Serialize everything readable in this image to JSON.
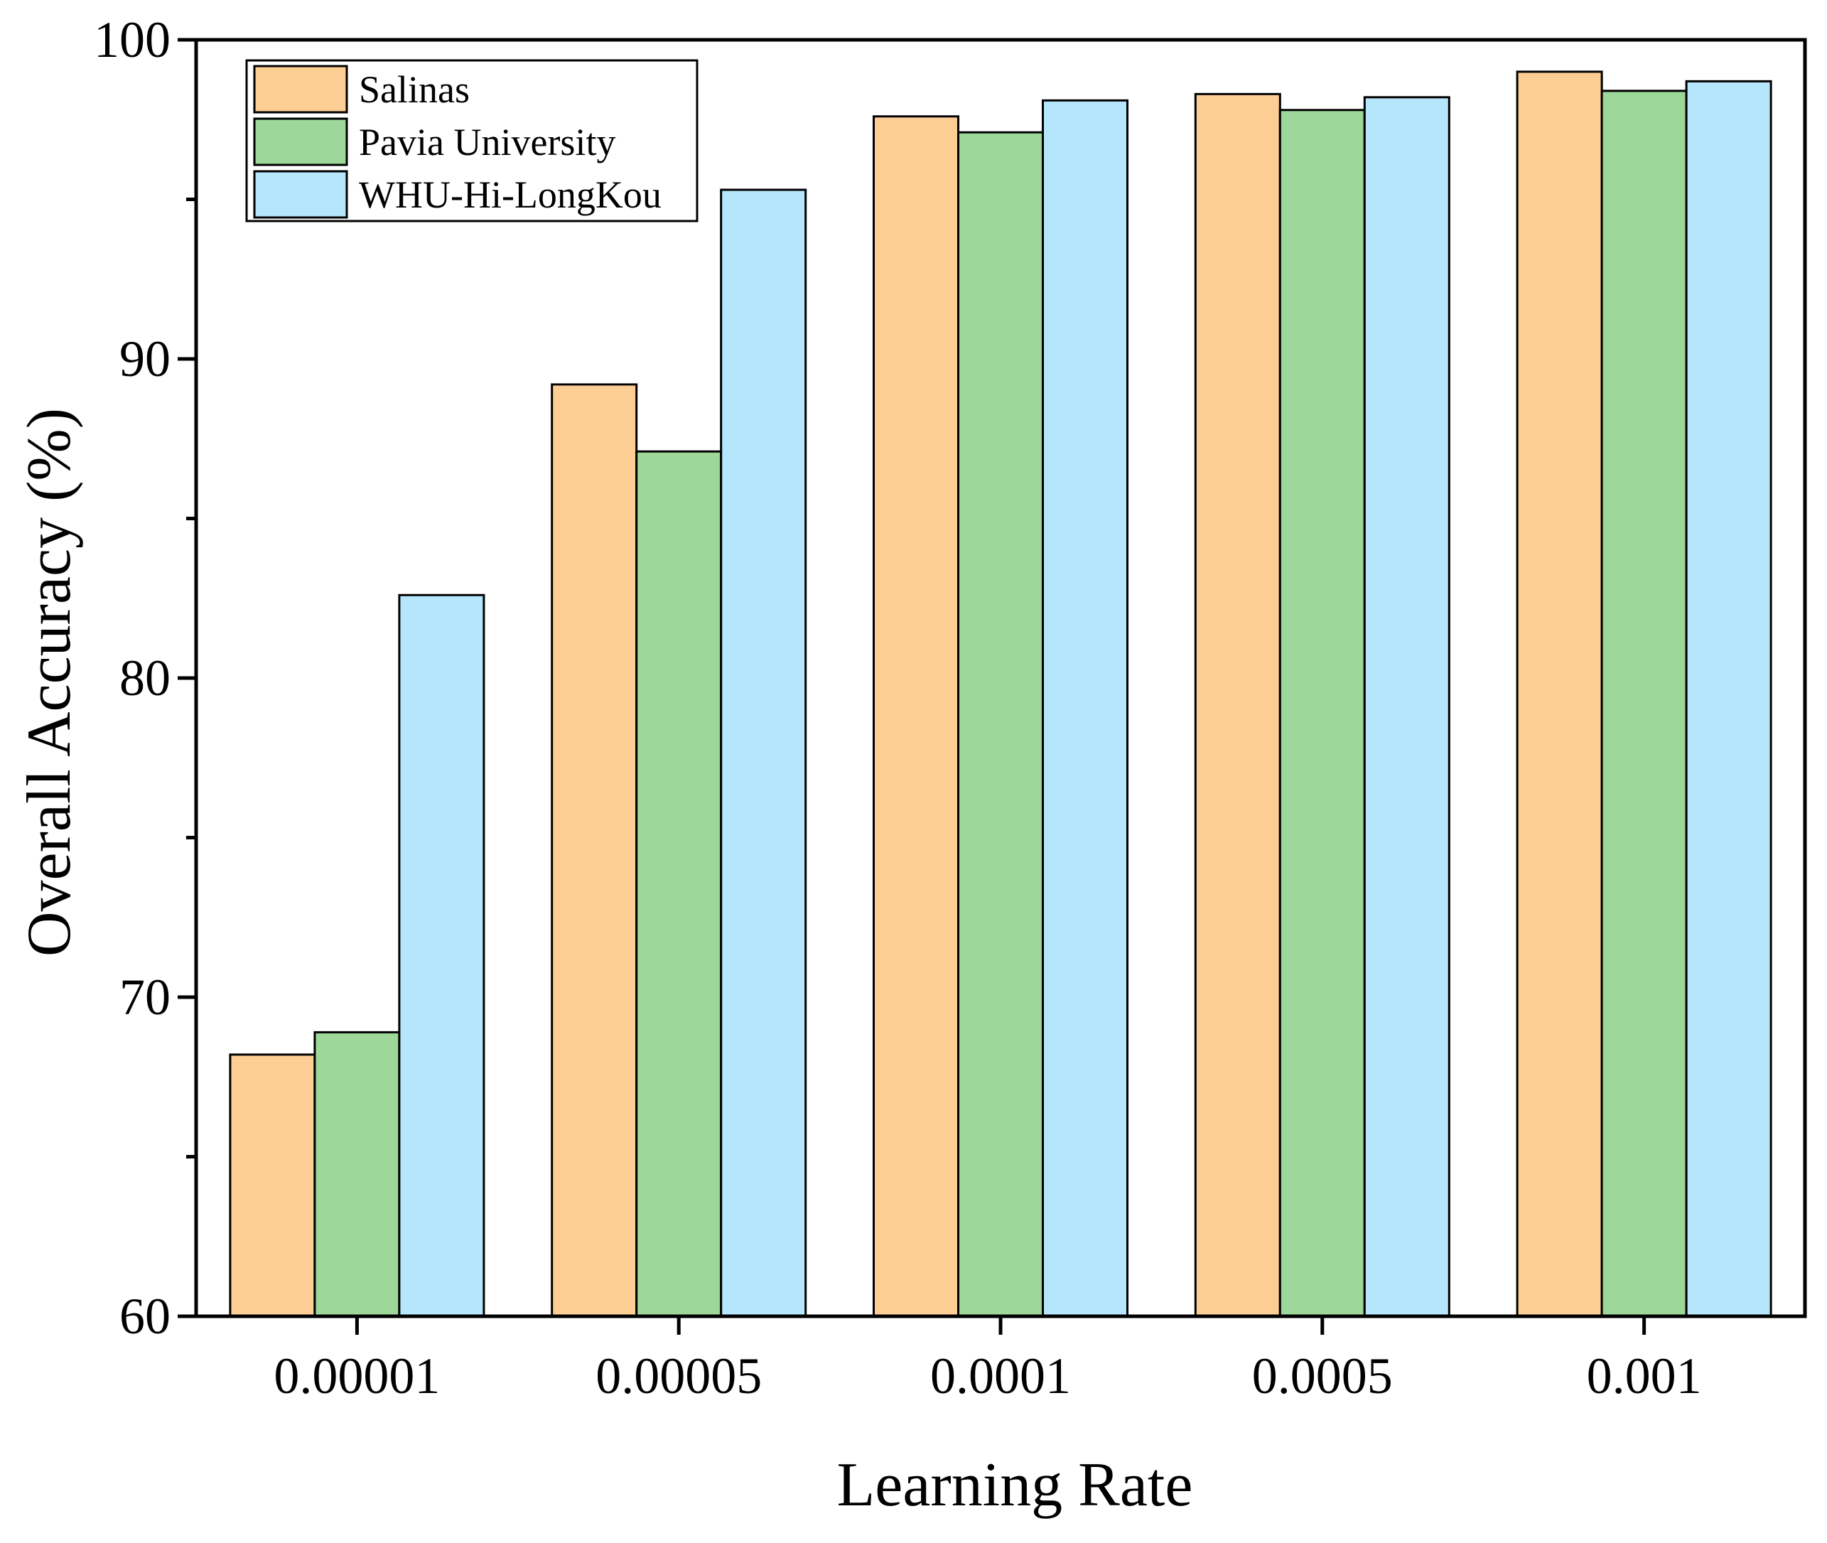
{
  "chart_data": {
    "type": "bar",
    "title": "",
    "xlabel": "Learning Rate",
    "ylabel": "Overall Accuracy (%)",
    "ylim": [
      60,
      100
    ],
    "yticks": [
      60,
      70,
      80,
      90,
      100
    ],
    "yticks_minor": [
      65,
      75,
      85,
      95
    ],
    "categories": [
      "0.00001",
      "0.00005",
      "0.0001",
      "0.0005",
      "0.001"
    ],
    "series": [
      {
        "name": "Salinas",
        "color": "#FDCE94",
        "values": [
          68.2,
          89.2,
          97.6,
          98.3,
          99.0
        ]
      },
      {
        "name": "Pavia University",
        "color": "#9DD79A",
        "values": [
          68.9,
          87.1,
          97.1,
          97.8,
          98.4
        ]
      },
      {
        "name": "WHU-Hi-LongKou",
        "color": "#B5E6FB",
        "values": [
          82.6,
          95.3,
          98.1,
          98.2,
          98.7
        ]
      }
    ],
    "legend_position": "top-left",
    "grid": false
  }
}
